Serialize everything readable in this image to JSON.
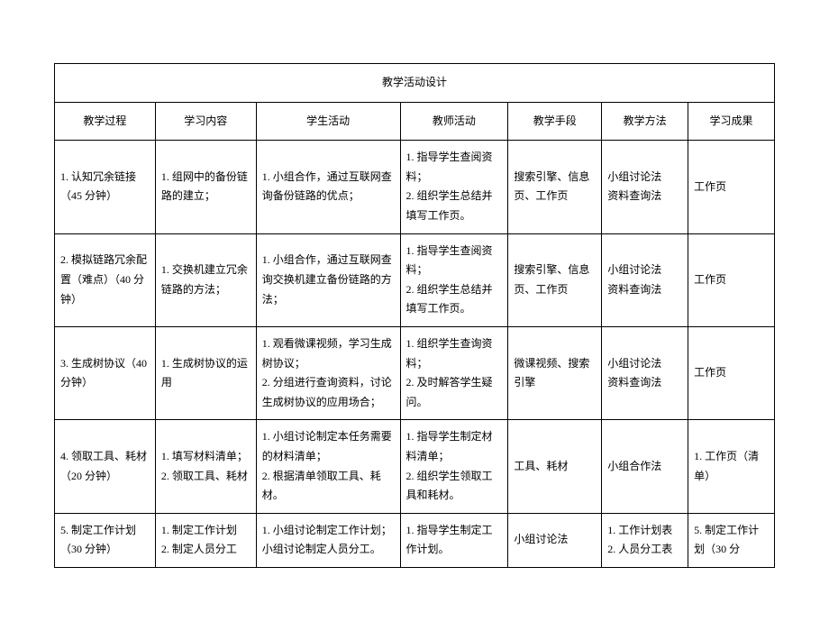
{
  "table": {
    "title": "教学活动设计",
    "columns": [
      "教学过程",
      "学习内容",
      "学生活动",
      "教师活动",
      "教学手段",
      "教学方法",
      "学习成果"
    ],
    "rows": [
      {
        "process": "1. 认知冗余链接（45 分钟）",
        "content": "1. 组网中的备份链路的建立；",
        "student": "1. 小组合作，通过互联网查询备份链路的优点；",
        "teacher": "1. 指导学生查阅资料；\n2. 组织学生总结并填写工作页。",
        "means": "搜索引擎、信息页、工作页",
        "method": "小组讨论法\n资料查询法",
        "outcome": "工作页"
      },
      {
        "process": "2. 模拟链路冗余配置（难点）（40 分钟）",
        "content": "1. 交换机建立冗余链路的方法；",
        "student": "1. 小组合作，通过互联网查询交换机建立备份链路的方法；",
        "teacher": "1. 指导学生查阅资料；\n2. 组织学生总结并填写工作页。",
        "means": "搜索引擎、信息页、工作页",
        "method": "小组讨论法\n资料查询法",
        "outcome": "工作页"
      },
      {
        "process": "3. 生成树协议（40 分钟）",
        "content": "1. 生成树协议的运用",
        "student": "1. 观看微课视频，学习生成树协议；\n2. 分组进行查询资料，讨论生成树协议的应用场合；",
        "teacher": "1. 组织学生查询资料；\n2. 及时解答学生疑问。",
        "means": "微课视频、搜索引擎",
        "method": "小组讨论法\n资料查询法",
        "outcome": "工作页"
      },
      {
        "process": "4. 领取工具、耗材（20 分钟）",
        "content": "1. 填写材料清单；\n2. 领取工具、耗材",
        "student": "1. 小组讨论制定本任务需要的材料清单；\n2. 根据清单领取工具、耗材。",
        "teacher": "1. 指导学生制定材料清单；\n2. 组织学生领取工具和耗材。",
        "means": "工具、耗材",
        "method": "小组合作法",
        "outcome": "1. 工作页（清单）"
      },
      {
        "process": "5. 制定工作计划（30 分钟）",
        "content": "1. 制定工作计划\n2. 制定人员分工",
        "student": "1. 小组讨论制定工作计划；小组讨论制定人员分工。",
        "teacher": "1. 指导学生制定工作计划。",
        "means": "小组讨论法",
        "method": "1. 工作计划表\n2. 人员分工表",
        "outcome": "5. 制定工作计划（30 分"
      }
    ],
    "styling": {
      "border_color": "#000000",
      "background_color": "#ffffff",
      "text_color": "#000000",
      "font_family": "SimSun",
      "font_size": 12,
      "line_height": 1.8,
      "column_widths": [
        "14%",
        "14%",
        "20%",
        "15%",
        "13%",
        "12%",
        "12%"
      ]
    }
  }
}
